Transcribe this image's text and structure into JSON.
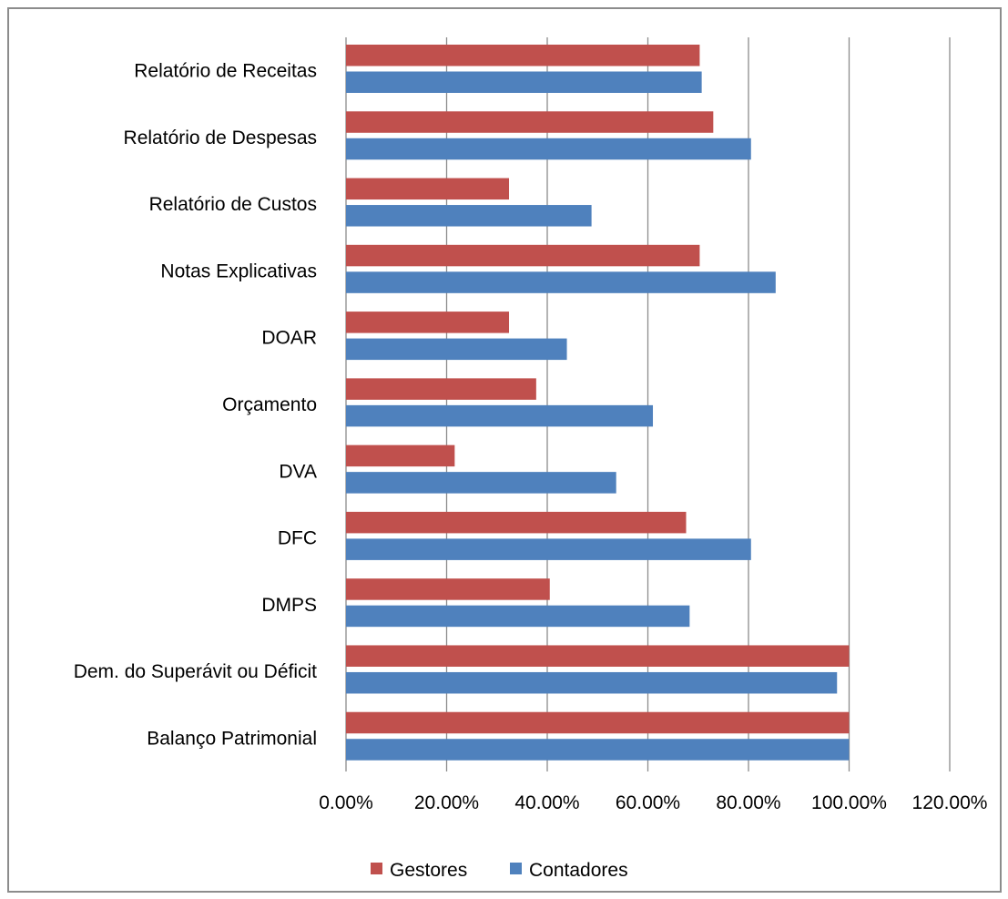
{
  "chart_data": {
    "type": "bar",
    "orientation": "horizontal",
    "categories": [
      "Relatório de Receitas",
      "Relatório de Despesas",
      "Relatório de Custos",
      "Notas Explicativas",
      "DOAR",
      "Orçamento",
      "DVA",
      "DFC",
      "DMPS",
      "Dem. do Superávit ou Déficit",
      "Balanço Patrimonial"
    ],
    "series": [
      {
        "name": "Gestores",
        "color": "#C0504D",
        "values": [
          70.3,
          73.0,
          32.4,
          70.3,
          32.4,
          37.8,
          21.6,
          67.6,
          40.5,
          100.0,
          100.0
        ]
      },
      {
        "name": "Contadores",
        "color": "#4F81BD",
        "values": [
          70.7,
          80.5,
          48.8,
          85.4,
          43.9,
          61.0,
          53.7,
          80.5,
          68.3,
          97.6,
          100.0
        ]
      }
    ],
    "xlim": [
      0,
      120
    ],
    "xticks": [
      "0.00%",
      "20.00%",
      "40.00%",
      "60.00%",
      "80.00%",
      "100.00%",
      "120.00%"
    ],
    "grid": "vertical",
    "legend_position": "bottom",
    "title": "",
    "xlabel": "",
    "ylabel": ""
  }
}
